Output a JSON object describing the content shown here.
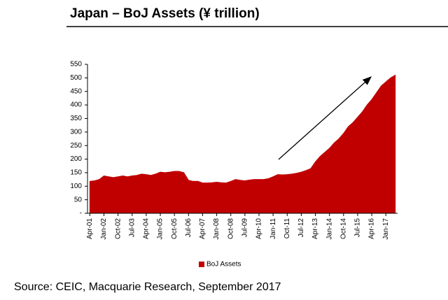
{
  "chart_data": {
    "type": "area",
    "title": "Japan – BoJ Assets (¥ trillion)",
    "source": "Source: CEIC, Macquarie Research, September 2017",
    "categories": [
      "Apr-01",
      null,
      null,
      "Jan-02",
      null,
      null,
      "Oct-02",
      null,
      null,
      "Jul-03",
      null,
      null,
      "Apr-04",
      null,
      null,
      "Jan-05",
      null,
      null,
      "Oct-05",
      null,
      null,
      "Jul-06",
      null,
      null,
      "Apr-07",
      null,
      null,
      "Jan-08",
      null,
      null,
      "Oct-08",
      null,
      null,
      "Jul-09",
      null,
      null,
      "Apr-10",
      null,
      null,
      "Jan-11",
      null,
      null,
      "Oct-11",
      null,
      null,
      "Jul-12",
      null,
      null,
      "Apr-13",
      null,
      null,
      "Jan-14",
      null,
      null,
      "Oct-14",
      null,
      null,
      "Jul-15",
      null,
      null,
      "Apr-16",
      null,
      null,
      "Jan-17",
      null,
      null
    ],
    "series": [
      {
        "name": "BoJ Assets",
        "color": "#c00000",
        "values": [
          118,
          120,
          125,
          138,
          135,
          132,
          135,
          138,
          135,
          138,
          140,
          145,
          143,
          140,
          145,
          152,
          150,
          152,
          155,
          155,
          150,
          122,
          118,
          118,
          112,
          112,
          113,
          115,
          113,
          112,
          118,
          125,
          122,
          120,
          123,
          125,
          125,
          125,
          128,
          135,
          143,
          142,
          143,
          145,
          148,
          152,
          158,
          165,
          190,
          210,
          225,
          240,
          260,
          275,
          295,
          320,
          335,
          355,
          375,
          400,
          420,
          445,
          470,
          485,
          500,
          510
        ]
      }
    ],
    "ylim": [
      0,
      550
    ],
    "yticks": [
      {
        "value": 0,
        "label": "-"
      },
      50,
      100,
      150,
      200,
      250,
      300,
      350,
      400,
      450,
      500,
      550
    ],
    "legend": "bottom"
  }
}
